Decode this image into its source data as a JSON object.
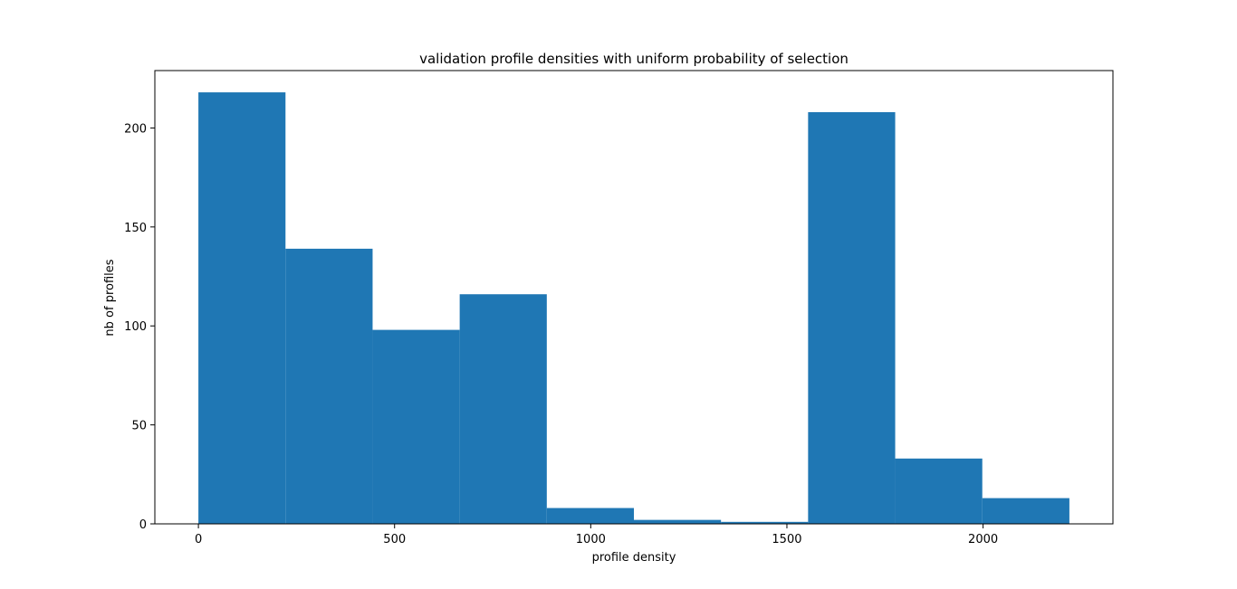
{
  "chart_data": {
    "type": "bar",
    "title": "validation profile densities with uniform probability of selection",
    "xlabel": "profile density",
    "ylabel": "nb of profiles",
    "bins": [
      {
        "x0": 0,
        "x1": 222,
        "count": 218
      },
      {
        "x0": 222,
        "x1": 444,
        "count": 139
      },
      {
        "x0": 444,
        "x1": 666,
        "count": 98
      },
      {
        "x0": 666,
        "x1": 888,
        "count": 116
      },
      {
        "x0": 888,
        "x1": 1110,
        "count": 8
      },
      {
        "x0": 1110,
        "x1": 1332,
        "count": 2
      },
      {
        "x0": 1332,
        "x1": 1554,
        "count": 1
      },
      {
        "x0": 1554,
        "x1": 1776,
        "count": 208
      },
      {
        "x0": 1776,
        "x1": 1998,
        "count": 33
      },
      {
        "x0": 1998,
        "x1": 2220,
        "count": 13
      }
    ],
    "xlim": [
      -111,
      2331
    ],
    "ylim": [
      0,
      229
    ],
    "xticks": [
      0,
      500,
      1000,
      1500,
      2000
    ],
    "yticks": [
      0,
      50,
      100,
      150,
      200
    ],
    "bar_color": "#1f77b4",
    "grid": false
  }
}
